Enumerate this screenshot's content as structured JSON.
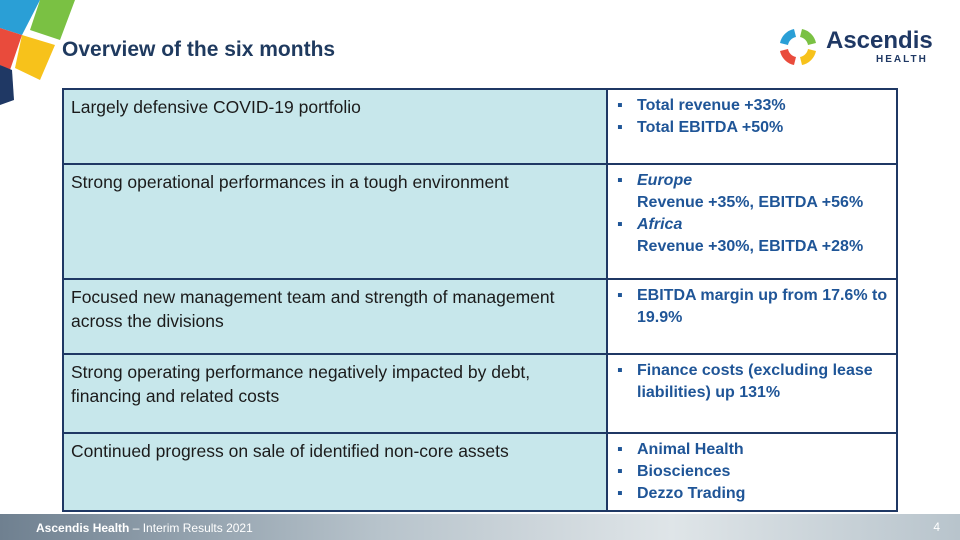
{
  "header": {
    "title": "Overview of the six months",
    "logo": {
      "name": "Ascendis",
      "tagline": "HEALTH"
    }
  },
  "table": {
    "rows": [
      {
        "left": "Largely defensive COVID-19 portfolio",
        "right": [
          {
            "text": "Total revenue +33%"
          },
          {
            "text": "Total EBITDA +50%"
          }
        ]
      },
      {
        "left": "Strong operational performances in a tough environment",
        "right": [
          {
            "region": "Europe",
            "text": "Revenue +35%, EBITDA +56%"
          },
          {
            "region": "Africa",
            "text": "Revenue +30%, EBITDA +28%"
          }
        ]
      },
      {
        "left": "Focused new management team and strength of management across the divisions",
        "right": [
          {
            "text": "EBITDA margin up from 17.6% to 19.9%"
          }
        ]
      },
      {
        "left": "Strong operating performance negatively impacted by debt, financing and related costs",
        "right": [
          {
            "text": "Finance costs (excluding lease liabilities) up 131%"
          }
        ]
      },
      {
        "left": "Continued progress on sale of identified non-core assets",
        "right": [
          {
            "text": "Animal Health"
          },
          {
            "text": "Biosciences"
          },
          {
            "text": "Dezzo Trading"
          }
        ]
      }
    ]
  },
  "footer": {
    "company": "Ascendis Health",
    "report": "– Interim Results 2021",
    "page": "4"
  }
}
